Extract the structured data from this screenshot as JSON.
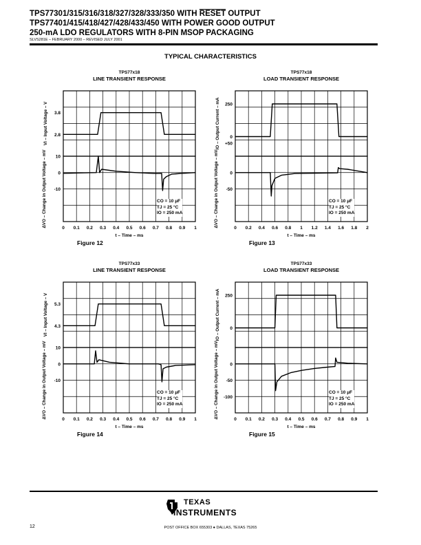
{
  "header": {
    "line1_part1": "TPS77301/315/316/318/327/328/333/350 WITH ",
    "line1_overline": "RESET",
    "line1_part2": " OUTPUT",
    "line2": "TPS77401/415/418/427/428/433/450 WITH POWER GOOD OUTPUT",
    "line3": "250-mA LDO REGULATORS WITH 8-PIN MSOP PACKAGING",
    "doc_id": "SLVS281E – FEBRUARY 2000 – REVISED JULY 2001"
  },
  "section_title": "TYPICAL CHARACTERISTICS",
  "chart_data": [
    {
      "type": "line",
      "figure": "Figure 12",
      "device": "TPS77x18",
      "title": "LINE TRANSIENT RESPONSE",
      "xlabel": "t – Time – ms",
      "xticks": [
        "0",
        "0.1",
        "0.2",
        "0.3",
        "0.4",
        "0.5",
        "0.6",
        "0.7",
        "0.8",
        "0.9",
        "1"
      ],
      "xlim": [
        0,
        1
      ],
      "top": {
        "ylabel": "VI – Input Voltage – V",
        "yticks": [
          "3.8",
          "2.8"
        ],
        "ylim": [
          1.8,
          4.8
        ],
        "series": [
          {
            "name": "VI",
            "x": [
              0,
              0.26,
              0.285,
              0.74,
              0.765,
              1
            ],
            "y": [
              2.8,
              2.8,
              3.8,
              3.8,
              2.8,
              2.8
            ]
          }
        ]
      },
      "bottom": {
        "ylabel": "ΔVO – Change in Output Voltage – mV",
        "yticks": [
          "10",
          "0",
          "-10"
        ],
        "ylim": [
          -30,
          10
        ],
        "series": [
          {
            "name": "ΔVO",
            "x": [
              0,
              0.25,
              0.265,
              0.275,
              0.29,
              0.4,
              0.55,
              0.7,
              0.745,
              0.752,
              0.76,
              0.78,
              0.82,
              0.9,
              1
            ],
            "y": [
              -0.5,
              0,
              10,
              0,
              2,
              0.8,
              0,
              -0.6,
              -0.5,
              -11,
              -4,
              -2.5,
              -1,
              -0.5,
              0
            ]
          }
        ]
      },
      "conditions": [
        "CO = 10 μF",
        "TJ = 25 °C",
        "IO = 250 mA"
      ]
    },
    {
      "type": "line",
      "figure": "Figure 13",
      "device": "TPS77x18",
      "title": "LOAD TRANSIENT RESPONSE",
      "xlabel": "t – Time – ms",
      "xticks": [
        "0",
        "0.2",
        "0.4",
        "0.6",
        "0.8",
        "1",
        "1.2",
        "1.4",
        "1.6",
        "1.8",
        "2"
      ],
      "xlim": [
        0,
        2
      ],
      "top": {
        "ylabel": "IO – Output Current – mA",
        "yticks": [
          "250",
          "0",
          "+50"
        ],
        "ylim": [
          -150,
          350
        ],
        "series": [
          {
            "name": "IO",
            "x": [
              0,
              0.53,
              0.56,
              1.54,
              1.57,
              2
            ],
            "y": [
              0,
              0,
              250,
              250,
              0,
              0
            ]
          }
        ]
      },
      "bottom": {
        "ylabel": "ΔVO – Change in Output Voltage – mV",
        "yticks": [
          "0",
          "-50"
        ],
        "ylim": [
          -150,
          50
        ],
        "series": [
          {
            "name": "ΔVO",
            "x": [
              0,
              0.53,
              0.545,
              0.555,
              0.6,
              0.7,
              0.9,
              1.2,
              1.55,
              1.56,
              1.58,
              1.7,
              2
            ],
            "y": [
              0,
              0,
              -72,
              -40,
              -18,
              -8,
              -3,
              -2,
              -1,
              15,
              12,
              10,
              0
            ]
          }
        ]
      },
      "conditions": [
        "CO = 10 μF",
        "TJ = 25 °C",
        "IO = 250 mA"
      ]
    },
    {
      "type": "line",
      "figure": "Figure 14",
      "device": "TPS77x33",
      "title": "LINE TRANSIENT RESPONSE",
      "xlabel": "t – Time – ms",
      "xticks": [
        "0",
        "0.1",
        "0.2",
        "0.3",
        "0.4",
        "0.5",
        "0.6",
        "0.7",
        "0.8",
        "0.9",
        "1"
      ],
      "xlim": [
        0,
        1
      ],
      "top": {
        "ylabel": "VI – Input Voltage – V",
        "yticks": [
          "5.3",
          "4.3"
        ],
        "ylim": [
          3.3,
          6.3
        ],
        "series": [
          {
            "name": "VI",
            "x": [
              0,
              0.24,
              0.265,
              0.74,
              0.765,
              1
            ],
            "y": [
              4.3,
              4.3,
              5.3,
              5.3,
              4.3,
              4.3
            ]
          }
        ]
      },
      "bottom": {
        "ylabel": "ΔVO – Change in Output Voltage – mV",
        "yticks": [
          "10",
          "0",
          "-10"
        ],
        "ylim": [
          -30,
          10
        ],
        "series": [
          {
            "name": "ΔVO",
            "x": [
              0,
              0.235,
              0.245,
              0.255,
              0.27,
              0.35,
              0.5,
              0.72,
              0.74,
              0.747,
              0.755,
              0.78,
              0.85,
              1
            ],
            "y": [
              0,
              0,
              8,
              1,
              2.5,
              1,
              0,
              0,
              -0.5,
              -11,
              -3,
              -2,
              -1,
              -0.5
            ]
          }
        ]
      },
      "conditions": [
        "CO = 10 μF",
        "TJ = 25 °C",
        "IO = 250 mA"
      ]
    },
    {
      "type": "line",
      "figure": "Figure 15",
      "device": "TPS77x33",
      "title": "LOAD TRANSIENT RESPONSE",
      "xlabel": "t – Time – ms",
      "xticks": [
        "0",
        "0.1",
        "0.2",
        "0.3",
        "0.4",
        "0.5",
        "0.6",
        "0.7",
        "0.8",
        "0.9",
        "1"
      ],
      "xlim": [
        0,
        1
      ],
      "top": {
        "ylabel": "IO – Output Current – mA",
        "yticks": [
          "250",
          "0"
        ],
        "ylim": [
          -150,
          350
        ],
        "series": [
          {
            "name": "IO",
            "x": [
              0,
              0.3,
              0.31,
              0.76,
              0.77,
              1
            ],
            "y": [
              0,
              0,
              250,
              250,
              0,
              0
            ]
          }
        ]
      },
      "bottom": {
        "ylabel": "ΔVO – Change in Output Voltage – mV",
        "yticks": [
          "0",
          "-50",
          "-100"
        ],
        "ylim": [
          -150,
          50
        ],
        "series": [
          {
            "name": "ΔVO",
            "x": [
              0,
              0.3,
              0.305,
              0.315,
              0.35,
              0.42,
              0.5,
              0.6,
              0.7,
              0.755,
              0.76,
              0.77,
              0.85,
              1
            ],
            "y": [
              0,
              0,
              -82,
              -55,
              -38,
              -27,
              -20,
              -14,
              -10,
              -8,
              18,
              5,
              2,
              0
            ]
          }
        ]
      },
      "conditions": [
        "CO = 10 μF",
        "TJ = 25 °C",
        "IO = 250 mA"
      ]
    }
  ],
  "footer": {
    "page_number": "12",
    "brand_line1": "TEXAS",
    "brand_line2": "INSTRUMENTS",
    "address": "POST OFFICE BOX 655303 ● DALLAS, TEXAS 75265"
  }
}
